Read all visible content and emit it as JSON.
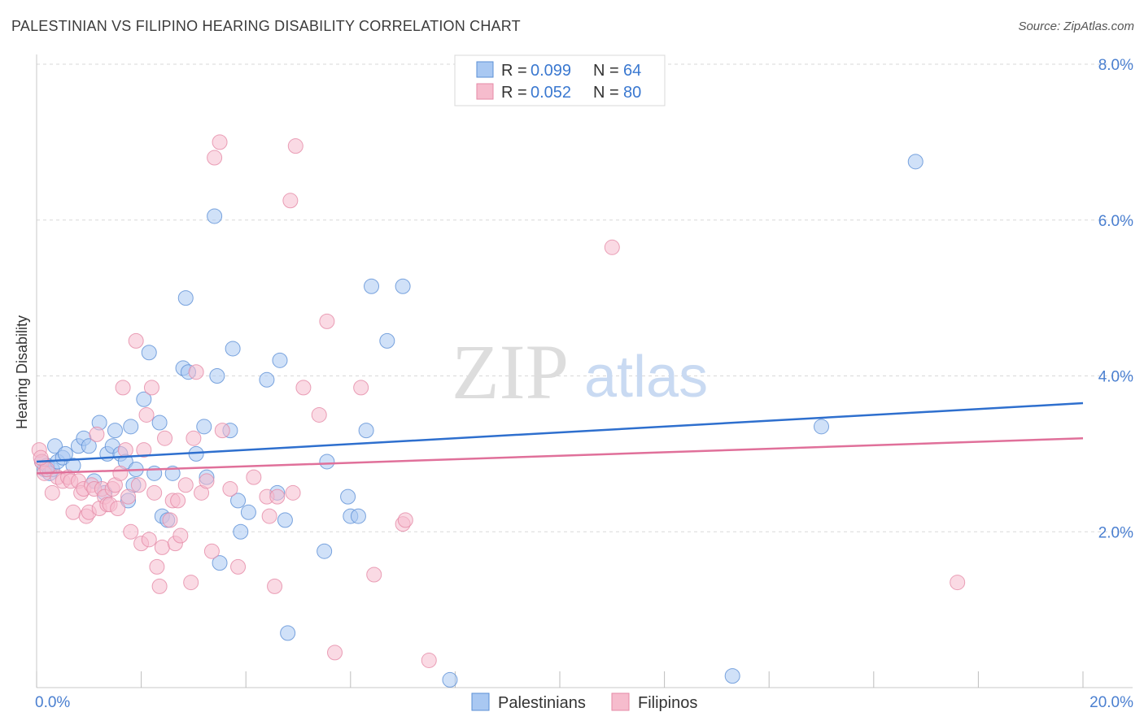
{
  "header": {
    "title": "PALESTINIAN VS FILIPINO HEARING DISABILITY CORRELATION CHART",
    "source": "Source: ZipAtlas.com"
  },
  "watermark": {
    "zip": "ZIP",
    "atlas": "atlas"
  },
  "colors": {
    "blue_fill": "#a9c8f2",
    "blue_stroke": "#5b8fd6",
    "blue_line": "#2e6fce",
    "pink_fill": "#f6bccd",
    "pink_stroke": "#e58aa6",
    "pink_line": "#e0709a",
    "tick_text": "#4a7fd0"
  },
  "legend": {
    "rows": [
      {
        "r_label": "R = ",
        "r_value": "0.099",
        "n_label": "N = ",
        "n_value": "64"
      },
      {
        "r_label": "R = ",
        "r_value": "0.052",
        "n_label": "N = ",
        "n_value": "80"
      }
    ]
  },
  "chart_data": {
    "type": "scatter",
    "title": "PALESTINIAN VS FILIPINO HEARING DISABILITY CORRELATION CHART",
    "xlabel": "",
    "ylabel": "Hearing Disability",
    "xlim": [
      0,
      20
    ],
    "ylim": [
      0,
      8
    ],
    "x_tick_labels": [
      "0.0%",
      "20.0%"
    ],
    "y_ticks": [
      2,
      4,
      6,
      8
    ],
    "y_tick_labels": [
      "2.0%",
      "4.0%",
      "6.0%",
      "8.0%"
    ],
    "grid": true,
    "legend_position": "top-center",
    "series": [
      {
        "name": "Palestinians",
        "color": "#a9c8f2",
        "trend": {
          "x": [
            0,
            20
          ],
          "y": [
            2.9,
            3.65
          ]
        },
        "points": [
          [
            0.1,
            2.9
          ],
          [
            0.15,
            2.8
          ],
          [
            0.2,
            2.85
          ],
          [
            0.25,
            2.75
          ],
          [
            0.3,
            2.8
          ],
          [
            0.35,
            3.1
          ],
          [
            0.4,
            2.9
          ],
          [
            0.5,
            2.95
          ],
          [
            0.55,
            3.0
          ],
          [
            0.7,
            2.85
          ],
          [
            0.8,
            3.1
          ],
          [
            0.9,
            3.2
          ],
          [
            1.0,
            3.1
          ],
          [
            1.1,
            2.65
          ],
          [
            1.2,
            3.4
          ],
          [
            1.3,
            2.5
          ],
          [
            1.35,
            3.0
          ],
          [
            1.45,
            3.1
          ],
          [
            1.5,
            3.3
          ],
          [
            1.6,
            3.0
          ],
          [
            1.7,
            2.9
          ],
          [
            1.75,
            2.4
          ],
          [
            1.8,
            3.35
          ],
          [
            1.85,
            2.6
          ],
          [
            1.9,
            2.8
          ],
          [
            2.05,
            3.7
          ],
          [
            2.15,
            4.3
          ],
          [
            2.25,
            2.75
          ],
          [
            2.35,
            3.4
          ],
          [
            2.4,
            2.2
          ],
          [
            2.5,
            2.15
          ],
          [
            2.6,
            2.75
          ],
          [
            2.8,
            4.1
          ],
          [
            2.85,
            5.0
          ],
          [
            2.9,
            4.05
          ],
          [
            3.05,
            3.0
          ],
          [
            3.2,
            3.35
          ],
          [
            3.25,
            2.7
          ],
          [
            3.4,
            6.05
          ],
          [
            3.45,
            4.0
          ],
          [
            3.5,
            1.6
          ],
          [
            3.7,
            3.3
          ],
          [
            3.75,
            4.35
          ],
          [
            3.85,
            2.4
          ],
          [
            3.9,
            2.0
          ],
          [
            4.05,
            2.25
          ],
          [
            4.4,
            3.95
          ],
          [
            4.6,
            2.5
          ],
          [
            4.65,
            4.2
          ],
          [
            4.75,
            2.15
          ],
          [
            4.8,
            0.7
          ],
          [
            5.5,
            1.75
          ],
          [
            5.55,
            2.9
          ],
          [
            5.95,
            2.45
          ],
          [
            6.0,
            2.2
          ],
          [
            6.15,
            2.2
          ],
          [
            6.3,
            3.3
          ],
          [
            6.4,
            5.15
          ],
          [
            6.7,
            4.45
          ],
          [
            7.0,
            5.15
          ],
          [
            7.9,
            0.1
          ],
          [
            13.3,
            0.15
          ],
          [
            15.0,
            3.35
          ],
          [
            16.8,
            6.75
          ]
        ]
      },
      {
        "name": "Filipinos",
        "color": "#f6bccd",
        "trend": {
          "x": [
            0,
            20
          ],
          "y": [
            2.75,
            3.2
          ]
        },
        "points": [
          [
            0.05,
            3.05
          ],
          [
            0.1,
            2.9
          ],
          [
            0.15,
            2.75
          ],
          [
            0.2,
            2.8
          ],
          [
            0.3,
            2.5
          ],
          [
            0.4,
            2.7
          ],
          [
            0.5,
            2.65
          ],
          [
            0.6,
            2.7
          ],
          [
            0.65,
            2.65
          ],
          [
            0.7,
            2.25
          ],
          [
            0.8,
            2.65
          ],
          [
            0.85,
            2.5
          ],
          [
            0.9,
            2.55
          ],
          [
            0.95,
            2.2
          ],
          [
            1.0,
            2.25
          ],
          [
            1.05,
            2.6
          ],
          [
            1.1,
            2.55
          ],
          [
            1.2,
            2.3
          ],
          [
            1.25,
            2.55
          ],
          [
            1.3,
            2.45
          ],
          [
            1.35,
            2.35
          ],
          [
            1.4,
            2.35
          ],
          [
            1.45,
            2.55
          ],
          [
            1.5,
            2.6
          ],
          [
            1.55,
            2.3
          ],
          [
            1.6,
            2.75
          ],
          [
            1.65,
            3.85
          ],
          [
            1.7,
            3.05
          ],
          [
            1.75,
            2.45
          ],
          [
            1.8,
            2.0
          ],
          [
            1.9,
            4.45
          ],
          [
            1.95,
            2.6
          ],
          [
            2.0,
            1.85
          ],
          [
            2.05,
            3.05
          ],
          [
            2.1,
            3.5
          ],
          [
            2.15,
            1.9
          ],
          [
            2.2,
            3.85
          ],
          [
            2.25,
            2.5
          ],
          [
            2.3,
            1.55
          ],
          [
            2.35,
            1.3
          ],
          [
            2.4,
            1.8
          ],
          [
            2.45,
            3.2
          ],
          [
            2.55,
            2.15
          ],
          [
            2.6,
            2.4
          ],
          [
            2.65,
            1.85
          ],
          [
            2.75,
            1.95
          ],
          [
            2.85,
            2.6
          ],
          [
            2.95,
            1.35
          ],
          [
            3.0,
            3.2
          ],
          [
            3.05,
            4.05
          ],
          [
            3.15,
            2.5
          ],
          [
            3.25,
            2.65
          ],
          [
            3.35,
            1.75
          ],
          [
            3.4,
            6.8
          ],
          [
            3.5,
            7.0
          ],
          [
            3.55,
            3.3
          ],
          [
            3.7,
            2.55
          ],
          [
            3.85,
            1.55
          ],
          [
            4.15,
            2.7
          ],
          [
            4.4,
            2.45
          ],
          [
            4.45,
            2.2
          ],
          [
            4.55,
            1.3
          ],
          [
            4.6,
            2.45
          ],
          [
            4.85,
            6.25
          ],
          [
            4.95,
            6.95
          ],
          [
            5.1,
            3.85
          ],
          [
            5.4,
            3.5
          ],
          [
            5.55,
            4.7
          ],
          [
            5.7,
            0.45
          ],
          [
            6.2,
            3.85
          ],
          [
            6.45,
            1.45
          ],
          [
            7.0,
            2.1
          ],
          [
            7.05,
            2.15
          ],
          [
            7.5,
            0.35
          ],
          [
            11.0,
            5.65
          ],
          [
            17.6,
            1.35
          ],
          [
            0.08,
            2.95
          ],
          [
            1.15,
            3.25
          ],
          [
            2.7,
            2.4
          ],
          [
            4.9,
            2.5
          ]
        ]
      }
    ]
  }
}
